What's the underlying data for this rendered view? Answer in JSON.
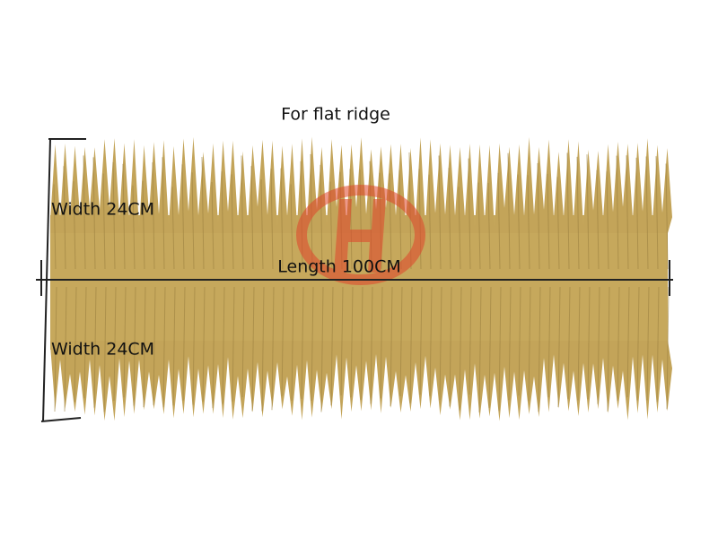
{
  "title": "For flat ridge",
  "annotations": {
    "width_top": "Width 24CM",
    "length": "Length 100CM",
    "width_bottom": "Width 24CM"
  }
}
